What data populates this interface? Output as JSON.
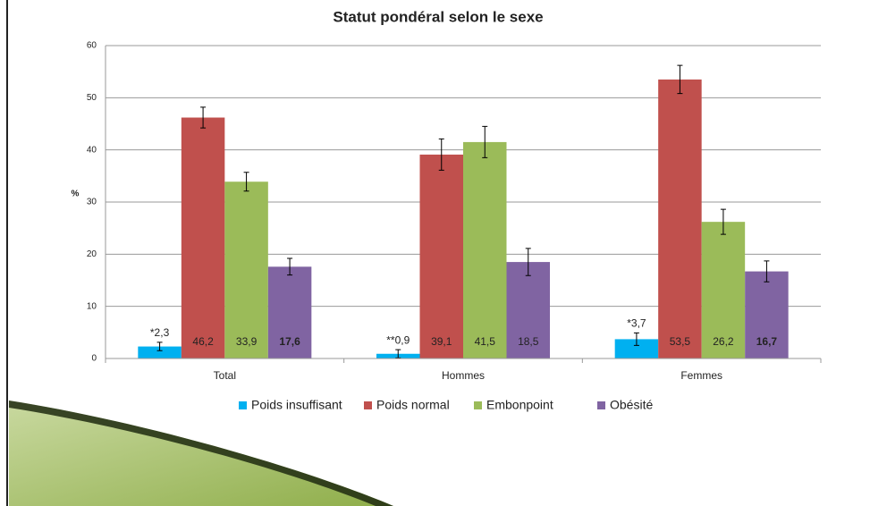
{
  "chart_data": {
    "type": "bar",
    "title": "Statut pondéral selon le sexe",
    "y_label": "%",
    "categories": [
      "Total",
      "Hommes",
      "Femmes"
    ],
    "series": [
      {
        "name": "Poids insuffisant",
        "color": "#00b0f0",
        "values": [
          2.3,
          0.9,
          3.7
        ],
        "value_labels": [
          "*2,3",
          "**0,9",
          "*3,7"
        ],
        "errors": [
          0.8,
          0.8,
          1.2
        ]
      },
      {
        "name": "Poids normal",
        "color": "#c0504d",
        "values": [
          46.2,
          39.1,
          53.5
        ],
        "value_labels": [
          "46,2",
          "39,1",
          "53,5"
        ],
        "errors": [
          2.0,
          3.0,
          2.7
        ]
      },
      {
        "name": "Embonpoint",
        "color": "#9bbb59",
        "values": [
          33.9,
          41.5,
          26.2
        ],
        "value_labels": [
          "33,9",
          "41,5",
          "26,2"
        ],
        "errors": [
          1.8,
          3.0,
          2.4
        ]
      },
      {
        "name": "Obésité",
        "color": "#8064a2",
        "values": [
          17.6,
          18.5,
          16.7
        ],
        "value_labels": [
          "17,6",
          "18,5",
          "16,7"
        ],
        "errors": [
          1.6,
          2.6,
          2.0
        ]
      }
    ],
    "ylim": [
      0,
      60
    ],
    "yticks": [
      0,
      10,
      20,
      30,
      40,
      50,
      60
    ],
    "grid": true,
    "legend": "bottom"
  }
}
